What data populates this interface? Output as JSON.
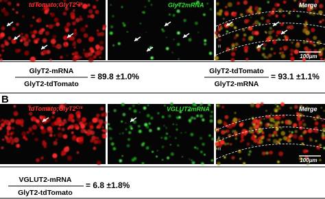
{
  "panel_a": {
    "label": "A",
    "images": [
      {
        "label": "tdTomato;GlyT2",
        "superscript": "Cre"
      },
      {
        "label": "GlyT2mRNA"
      },
      {
        "label": "Merge",
        "layers": [
          "I",
          "II",
          "III"
        ],
        "scale_bar": "100μm"
      }
    ],
    "equations": [
      {
        "numerator": "GlyT2-mRNA",
        "denominator": "GlyT2-tdTomato",
        "result": "= 89.8 ±1.0%"
      },
      {
        "numerator": "GlyT2-tdTomato",
        "denominator": "GlyT2-mRNA",
        "result": "= 93.1 ±1.1%"
      }
    ]
  },
  "panel_b": {
    "label": "B",
    "images": [
      {
        "label": "tdTomato;GlyT2",
        "superscript": "Cre"
      },
      {
        "label": "VGLUT2mRNA"
      },
      {
        "label": "Merge",
        "layers": [
          "I",
          "II",
          "III"
        ],
        "scale_bar": "100μm"
      }
    ],
    "equations": [
      {
        "numerator": "VGLUT2-mRNA",
        "denominator": "GlyT2-tdTomato",
        "result": "= 6.8 ±1.8%"
      }
    ]
  }
}
